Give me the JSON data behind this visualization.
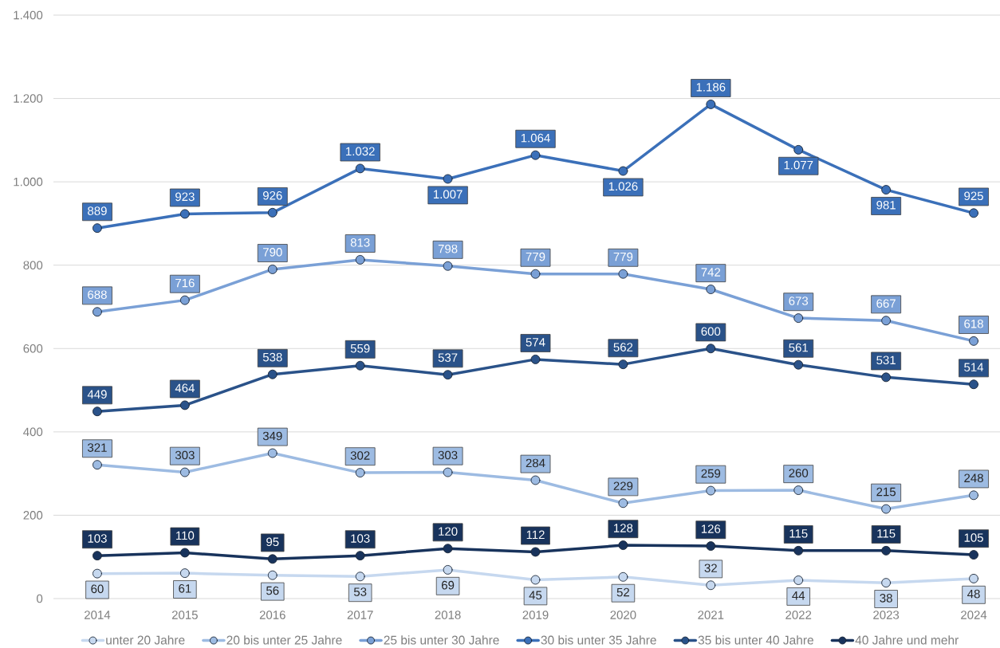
{
  "chart_data": {
    "type": "line",
    "categories": [
      "2014",
      "2015",
      "2016",
      "2017",
      "2018",
      "2019",
      "2020",
      "2021",
      "2022",
      "2023",
      "2024"
    ],
    "series": [
      {
        "name": "unter 20 Jahre",
        "color": "#c6d8ef",
        "values": [
          60,
          61,
          56,
          53,
          69,
          45,
          52,
          32,
          44,
          38,
          48
        ],
        "value_labels": [
          "60",
          "61",
          "56",
          "53",
          "69",
          "45",
          "52",
          "32",
          "44",
          "38",
          "48"
        ]
      },
      {
        "name": "20 bis unter 25 Jahre",
        "color": "#9dbbe2",
        "values": [
          321,
          303,
          349,
          302,
          303,
          284,
          229,
          259,
          260,
          215,
          248
        ],
        "value_labels": [
          "321",
          "303",
          "349",
          "302",
          "303",
          "284",
          "229",
          "259",
          "260",
          "215",
          "248"
        ]
      },
      {
        "name": "25 bis unter 30 Jahre",
        "color": "#7aa0d6",
        "values": [
          688,
          716,
          790,
          813,
          798,
          779,
          779,
          742,
          673,
          667,
          618
        ],
        "value_labels": [
          "688",
          "716",
          "790",
          "813",
          "798",
          "779",
          "779",
          "742",
          "673",
          "667",
          "618"
        ]
      },
      {
        "name": "30 bis unter 35 Jahre",
        "color": "#3b70b9",
        "values": [
          889,
          923,
          926,
          1032,
          1007,
          1064,
          1026,
          1186,
          1077,
          981,
          925
        ],
        "value_labels": [
          "889",
          "923",
          "926",
          "1.032",
          "1.007",
          "1.064",
          "1.026",
          "1.186",
          "1.077",
          "981",
          "925"
        ]
      },
      {
        "name": "35 bis unter 40 Jahre",
        "color": "#2a5289",
        "values": [
          449,
          464,
          538,
          559,
          537,
          574,
          562,
          600,
          561,
          531,
          514
        ],
        "value_labels": [
          "449",
          "464",
          "538",
          "559",
          "537",
          "574",
          "562",
          "600",
          "561",
          "531",
          "514"
        ]
      },
      {
        "name": "40 Jahre und mehr",
        "color": "#18335c",
        "values": [
          103,
          110,
          95,
          103,
          120,
          112,
          128,
          126,
          115,
          115,
          105
        ],
        "value_labels": [
          "103",
          "110",
          "95",
          "103",
          "120",
          "112",
          "128",
          "126",
          "115",
          "115",
          "105"
        ]
      }
    ],
    "ylim": [
      0,
      1400
    ],
    "yticks": [
      0,
      200,
      400,
      600,
      800,
      {
        "value": 1000,
        "label": "1.000"
      },
      {
        "value": 1200,
        "label": "1.200"
      },
      {
        "value": 1400,
        "label": "1.400"
      }
    ],
    "grid": "y",
    "legend": "bottom",
    "marker": "circle",
    "line_style": "solid"
  }
}
